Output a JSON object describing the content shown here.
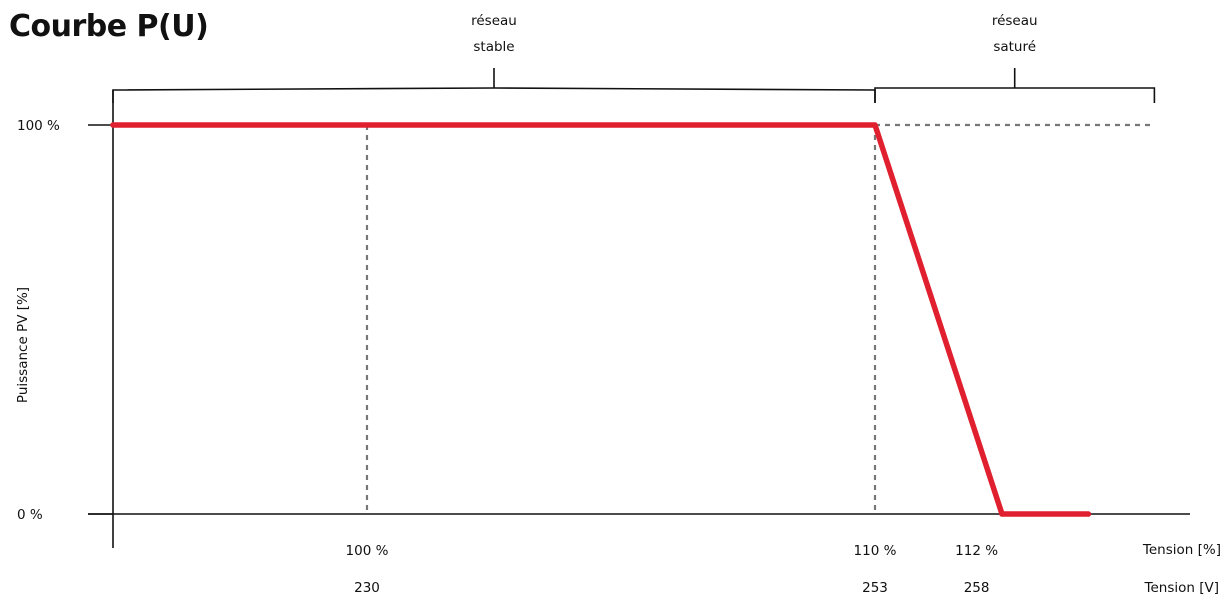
{
  "chart_data": {
    "type": "line",
    "title": "Courbe P(U)",
    "ylabel": "Puissance PV [%]",
    "xlabel_percent": "Tension [%]",
    "xlabel_volt": "Tension [V]",
    "y_ticks": [
      {
        "value": 100,
        "label": "100 %"
      },
      {
        "value": 0,
        "label": "0 %"
      }
    ],
    "x_ticks": [
      {
        "percent": 100,
        "percent_label": "100 %",
        "volt_label": "230",
        "guide": true
      },
      {
        "percent": 110,
        "percent_label": "110 %",
        "volt_label": "253",
        "guide": true
      },
      {
        "percent": 112,
        "percent_label": "112 %",
        "volt_label": "258",
        "guide": false
      }
    ],
    "xlim": [
      95,
      114.7
    ],
    "ylim": [
      0,
      100
    ],
    "series": [
      {
        "color": "#e01f2f",
        "points": [
          [
            95,
            100
          ],
          [
            110,
            100
          ],
          [
            112.5,
            0
          ],
          [
            114.2,
            0
          ]
        ]
      }
    ],
    "reference_line": {
      "value": 100,
      "from": 110,
      "to": 115.5,
      "style": "dotted",
      "color": "#777777"
    },
    "regions": [
      {
        "label_line1": "réseau",
        "label_line2": "stable",
        "from": 95,
        "to": 110
      },
      {
        "label_line1": "réseau",
        "label_line2": "saturé",
        "from": 110,
        "to": 115.5
      }
    ],
    "grid": false
  }
}
